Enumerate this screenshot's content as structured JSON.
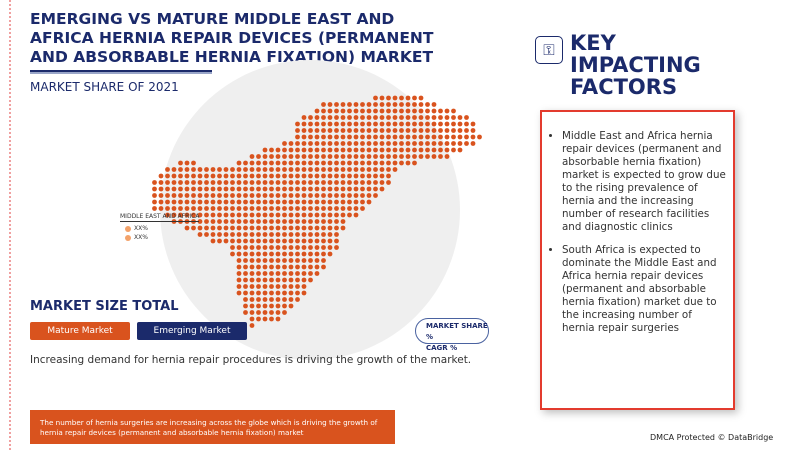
{
  "header": {
    "title": "EMERGING VS MATURE MIDDLE EAST AND AFRICA HERNIA REPAIR DEVICES (PERMANENT AND ABSORBABLE HERNIA FIXATION) MARKET",
    "subtitle": "MARKET SHARE OF 2021"
  },
  "map": {
    "dot_color": "#d9531e",
    "legend": {
      "title": "MIDDLE EAST AND AFRICA",
      "items": [
        "XX%",
        "XX%"
      ]
    }
  },
  "market_size": {
    "title": "MARKET SIZE TOTAL",
    "mature_label": "Mature Market",
    "emerging_label": "Emerging Market",
    "mature_color": "#d9531e",
    "emerging_color": "#1b2a6b"
  },
  "pill": {
    "line1": "MARKET SHARE %",
    "line2": "CAGR %"
  },
  "growth_text": "Increasing demand for hernia repair procedures is driving the growth of the market.",
  "footer_bar": "The number of hernia surgeries are increasing across the globe which is driving the growth of hernia repair devices (permanent and absorbable hernia fixation) market",
  "key_factors": {
    "title": "KEY IMPACTING FACTORS",
    "icon": "key-gear-icon",
    "items": [
      "Middle East and Africa hernia repair devices (permanent and absorbable hernia fixation) market is expected to grow due to the rising prevalence of hernia and the increasing number of research facilities and diagnostic clinics",
      "South Africa is expected to dominate the Middle East and Africa hernia repair devices (permanent and absorbable hernia fixation) market due to the increasing number of hernia repair surgeries"
    ]
  },
  "dmca": "DMCA Protected © DataBridge"
}
